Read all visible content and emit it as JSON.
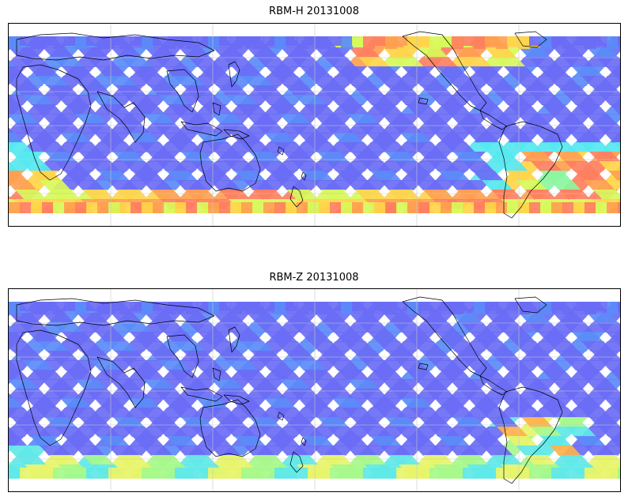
{
  "panels": [
    {
      "id": "top",
      "title": "RBM-H 20131008",
      "band_colors": [
        "#ff7f60",
        "#ffa050",
        "#ffd54a",
        "#d8f85a",
        "#8cf5a0",
        "#56e8f0"
      ],
      "hot_regions": [
        "south-pacific",
        "south-atlantic",
        "southern-ocean",
        "north-pacific-east"
      ]
    },
    {
      "id": "bottom",
      "title": "RBM-Z 20131008",
      "band_colors": [
        "#ffb04a",
        "#e7f46a",
        "#a6f88a",
        "#5fe8e8"
      ],
      "hot_regions": [
        "south-atlantic-weak",
        "southern-ocean-weak"
      ]
    }
  ],
  "palette": {
    "swath_base": "#6a6cf5",
    "swath_alt": "#5b8bf8",
    "gridline": "#c8c8c8",
    "coastline": "#000000",
    "background": "#ffffff"
  }
}
